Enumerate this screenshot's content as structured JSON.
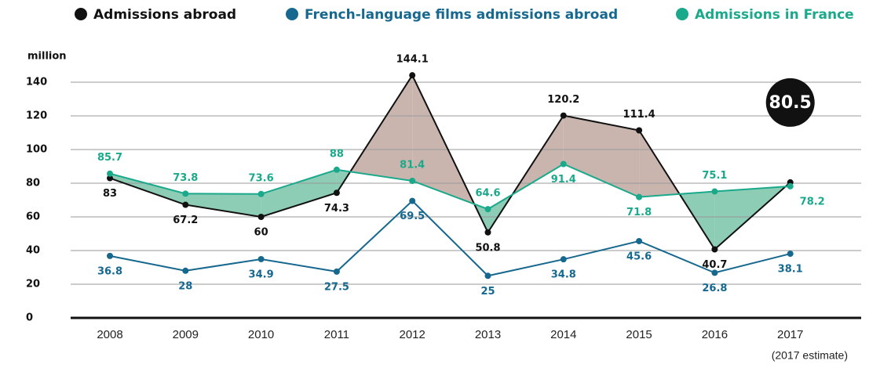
{
  "chart_data": {
    "type": "line",
    "y_label": "million",
    "note": "(2017 estimate)",
    "categories": [
      "2008",
      "2009",
      "2010",
      "2011",
      "2012",
      "2013",
      "2014",
      "2015",
      "2016",
      "2017"
    ],
    "series": [
      {
        "name": "Admissions abroad",
        "color": "#111111",
        "values": [
          83,
          67.2,
          60,
          74.3,
          144.1,
          50.8,
          120.2,
          111.4,
          40.7,
          80.5
        ]
      },
      {
        "name": "French-language films admissions abroad",
        "color": "#16688f",
        "values": [
          36.8,
          28,
          34.9,
          27.5,
          69.5,
          25,
          34.8,
          45.6,
          26.8,
          38.1
        ]
      },
      {
        "name": "Admissions in France",
        "color": "#1aa98a",
        "values": [
          85.7,
          73.8,
          73.6,
          88,
          81.4,
          64.6,
          91.4,
          71.8,
          75.1,
          78.2
        ]
      }
    ],
    "area_colors": {
      "above": "#c9b5ae",
      "below": "#8dccb5"
    },
    "ylim": [
      0,
      150
    ],
    "yticks": [
      0,
      20,
      40,
      60,
      80,
      100,
      120,
      140
    ],
    "grid": true
  }
}
